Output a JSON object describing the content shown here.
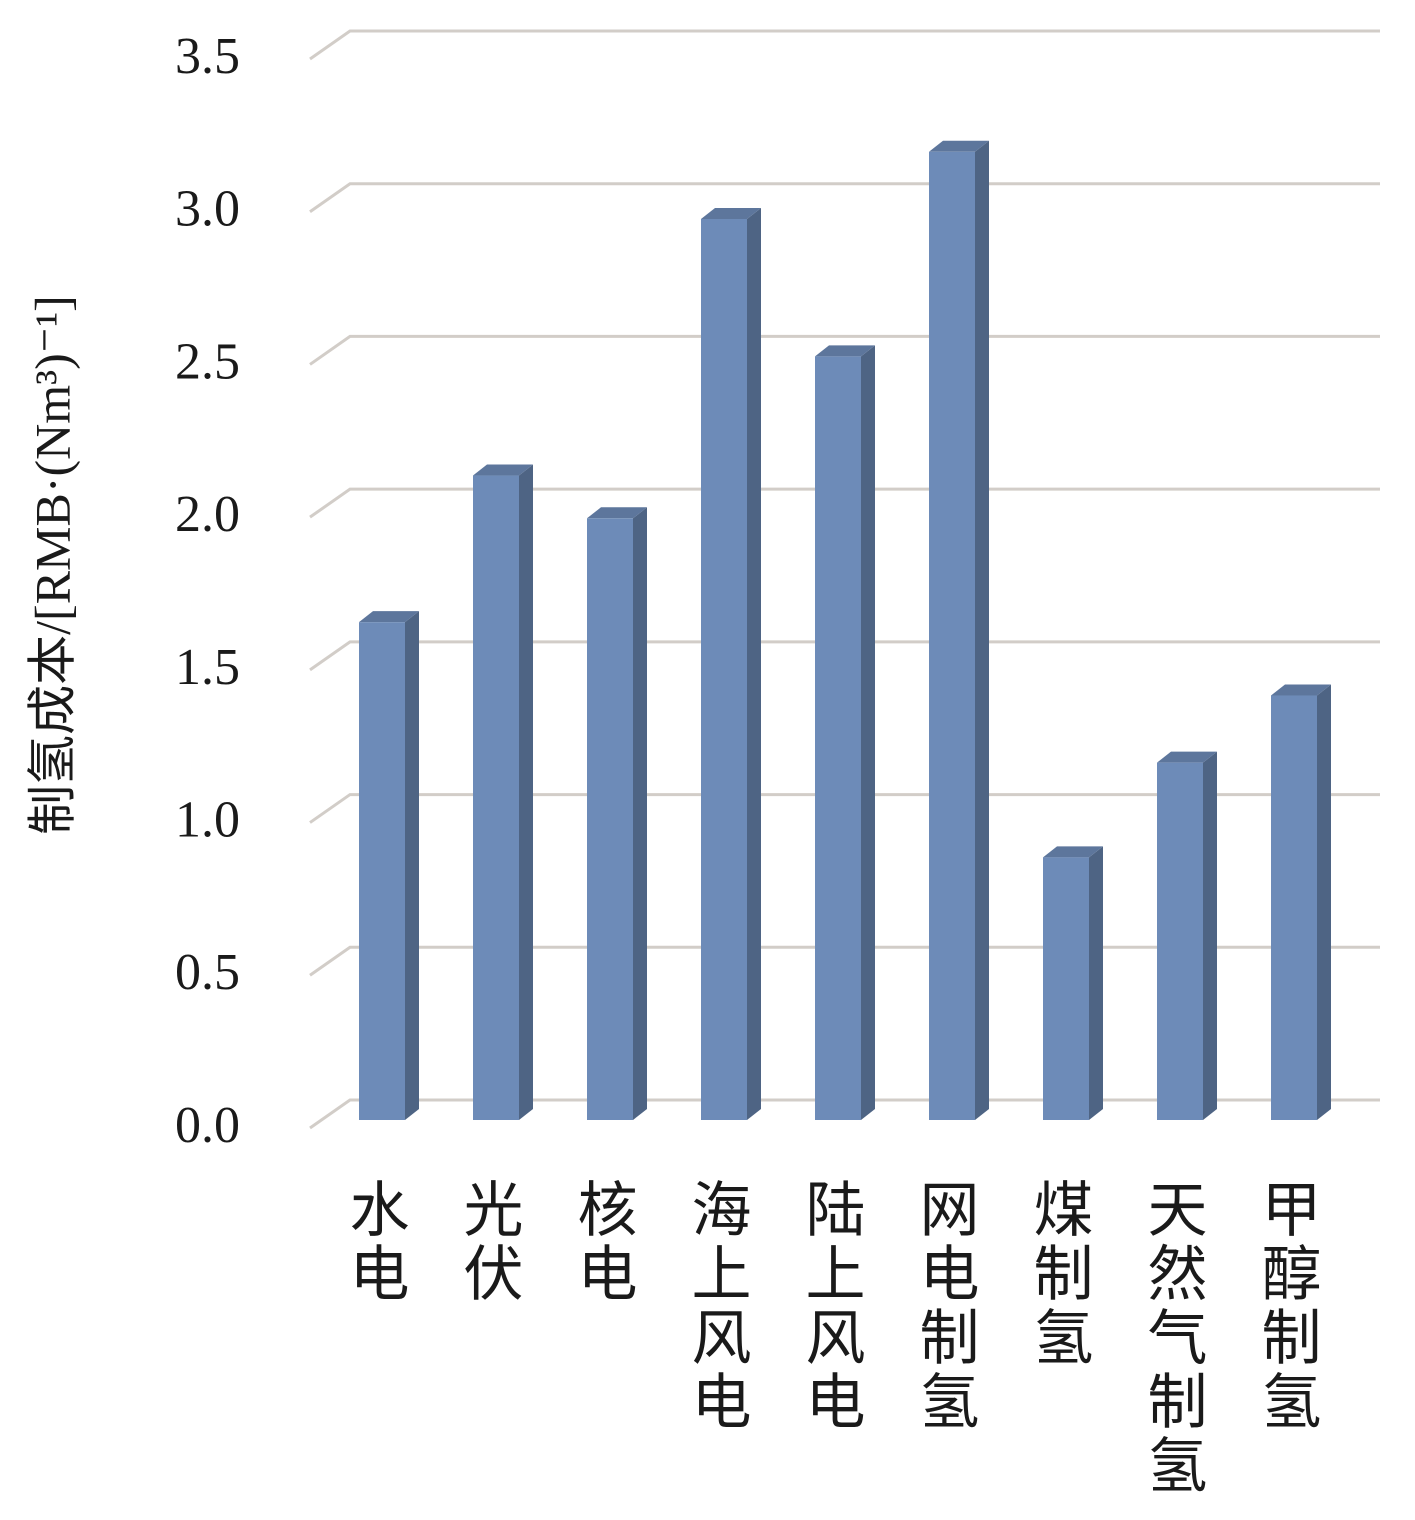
{
  "chart_data": {
    "type": "bar3d",
    "y_label": "制氢成本/[RMB·(Nm³)⁻¹]",
    "categories": [
      "水电",
      "光伏",
      "核电",
      "海上风电",
      "陆上风电",
      "网电制氢",
      "煤制氢",
      "天然气制氢",
      "甲醇制氢"
    ],
    "values": [
      1.63,
      2.11,
      1.97,
      2.95,
      2.5,
      3.17,
      0.86,
      1.17,
      1.39
    ],
    "color": "#6d8bb8",
    "ylim": [
      0,
      3.5
    ],
    "yticks": [
      {
        "value": 0,
        "label": "0.0"
      },
      0.5,
      {
        "value": 1,
        "label": "1.0"
      },
      1.5,
      {
        "value": 2,
        "label": "2.0"
      },
      2.5,
      {
        "value": 3,
        "label": "3.0"
      },
      3.5
    ],
    "grid": true
  }
}
